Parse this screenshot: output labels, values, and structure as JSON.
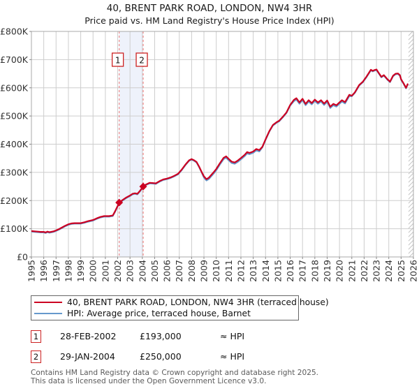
{
  "header": {
    "title": "40, BRENT PARK ROAD, LONDON, NW4 3HR",
    "subtitle": "Price paid vs. HM Land Registry's House Price Index (HPI)"
  },
  "chart_data": {
    "type": "line",
    "title": "40, BRENT PARK ROAD, LONDON, NW4 3HR",
    "subtitle": "Price paid vs. HM Land Registry's House Price Index (HPI)",
    "grid": true,
    "x_axis": {
      "range": [
        1995,
        2026
      ],
      "tick_labels": [
        "1995",
        "1996",
        "1997",
        "1998",
        "1999",
        "2000",
        "2001",
        "2002",
        "2003",
        "2004",
        "2005",
        "2006",
        "2007",
        "2008",
        "2009",
        "2010",
        "2011",
        "2012",
        "2013",
        "2014",
        "2015",
        "2016",
        "2017",
        "2018",
        "2019",
        "2020",
        "2021",
        "2022",
        "2023",
        "2024",
        "2025",
        "2026"
      ]
    },
    "y_axis": {
      "range": [
        0,
        800000
      ],
      "tick_step": 100000,
      "tick_labels": [
        "£0",
        "£100K",
        "£200K",
        "£300K",
        "£400K",
        "£500K",
        "£600K",
        "£700K",
        "£800K"
      ]
    },
    "series": [
      {
        "name": "40, BRENT PARK ROAD, LONDON, NW4 3HR (terraced house)",
        "color": "#cc0022",
        "points": [
          [
            1995.0,
            92000
          ],
          [
            1995.25,
            91000
          ],
          [
            1995.5,
            90000
          ],
          [
            1995.75,
            89000
          ],
          [
            1996.0,
            89000
          ],
          [
            1996.15,
            87000
          ],
          [
            1996.3,
            90000
          ],
          [
            1996.45,
            88000
          ],
          [
            1996.6,
            89000
          ],
          [
            1996.8,
            91000
          ],
          [
            1997.0,
            94000
          ],
          [
            1997.25,
            99000
          ],
          [
            1997.5,
            105000
          ],
          [
            1997.75,
            111000
          ],
          [
            1998.0,
            116000
          ],
          [
            1998.25,
            119000
          ],
          [
            1998.5,
            120000
          ],
          [
            1999.0,
            120000
          ],
          [
            1999.3,
            123000
          ],
          [
            1999.6,
            127000
          ],
          [
            2000.0,
            131000
          ],
          [
            2000.3,
            137000
          ],
          [
            2000.6,
            142000
          ],
          [
            2000.9,
            145000
          ],
          [
            2001.3,
            145000
          ],
          [
            2001.6,
            147000
          ],
          [
            2001.8,
            163000
          ],
          [
            2002.0,
            181000
          ],
          [
            2002.12,
            193000
          ],
          [
            2002.4,
            202000
          ],
          [
            2002.7,
            211000
          ],
          [
            2003.0,
            218000
          ],
          [
            2003.2,
            224000
          ],
          [
            2003.4,
            226000
          ],
          [
            2003.6,
            224000
          ],
          [
            2003.8,
            234000
          ],
          [
            2004.07,
            250000
          ],
          [
            2004.3,
            257000
          ],
          [
            2004.6,
            263000
          ],
          [
            2004.9,
            262000
          ],
          [
            2005.1,
            261000
          ],
          [
            2005.4,
            269000
          ],
          [
            2005.7,
            275000
          ],
          [
            2006.0,
            278000
          ],
          [
            2006.3,
            282000
          ],
          [
            2006.6,
            288000
          ],
          [
            2006.9,
            295000
          ],
          [
            2007.2,
            310000
          ],
          [
            2007.5,
            328000
          ],
          [
            2007.8,
            343000
          ],
          [
            2008.0,
            347000
          ],
          [
            2008.2,
            343000
          ],
          [
            2008.4,
            337000
          ],
          [
            2008.6,
            321000
          ],
          [
            2008.8,
            303000
          ],
          [
            2009.0,
            286000
          ],
          [
            2009.2,
            276000
          ],
          [
            2009.4,
            281000
          ],
          [
            2009.6,
            291000
          ],
          [
            2009.8,
            301000
          ],
          [
            2010.0,
            312000
          ],
          [
            2010.3,
            333000
          ],
          [
            2010.6,
            352000
          ],
          [
            2010.8,
            357000
          ],
          [
            2011.0,
            348000
          ],
          [
            2011.25,
            338000
          ],
          [
            2011.5,
            335000
          ],
          [
            2011.75,
            342000
          ],
          [
            2012.0,
            351000
          ],
          [
            2012.3,
            362000
          ],
          [
            2012.5,
            372000
          ],
          [
            2012.7,
            369000
          ],
          [
            2013.0,
            374000
          ],
          [
            2013.25,
            383000
          ],
          [
            2013.5,
            379000
          ],
          [
            2013.75,
            391000
          ],
          [
            2014.0,
            417000
          ],
          [
            2014.3,
            446000
          ],
          [
            2014.6,
            468000
          ],
          [
            2014.9,
            478000
          ],
          [
            2015.1,
            483000
          ],
          [
            2015.4,
            497000
          ],
          [
            2015.7,
            513000
          ],
          [
            2016.0,
            539000
          ],
          [
            2016.3,
            557000
          ],
          [
            2016.5,
            563000
          ],
          [
            2016.75,
            548000
          ],
          [
            2017.0,
            561000
          ],
          [
            2017.25,
            543000
          ],
          [
            2017.5,
            556000
          ],
          [
            2017.75,
            546000
          ],
          [
            2018.0,
            558000
          ],
          [
            2018.25,
            548000
          ],
          [
            2018.5,
            556000
          ],
          [
            2018.75,
            544000
          ],
          [
            2019.0,
            555000
          ],
          [
            2019.25,
            533000
          ],
          [
            2019.5,
            543000
          ],
          [
            2019.75,
            538000
          ],
          [
            2020.0,
            548000
          ],
          [
            2020.2,
            556000
          ],
          [
            2020.45,
            549000
          ],
          [
            2020.8,
            575000
          ],
          [
            2021.0,
            572000
          ],
          [
            2021.25,
            584000
          ],
          [
            2021.6,
            610000
          ],
          [
            2021.9,
            622000
          ],
          [
            2022.2,
            640000
          ],
          [
            2022.55,
            664000
          ],
          [
            2022.7,
            660000
          ],
          [
            2022.85,
            663000
          ],
          [
            2023.0,
            665000
          ],
          [
            2023.2,
            652000
          ],
          [
            2023.4,
            639000
          ],
          [
            2023.6,
            645000
          ],
          [
            2023.9,
            630000
          ],
          [
            2024.1,
            622000
          ],
          [
            2024.35,
            643000
          ],
          [
            2024.55,
            650000
          ],
          [
            2024.75,
            651000
          ],
          [
            2024.9,
            645000
          ],
          [
            2025.0,
            630000
          ],
          [
            2025.2,
            616000
          ],
          [
            2025.4,
            600000
          ],
          [
            2025.55,
            615000
          ]
        ]
      },
      {
        "name": "HPI: Average price, terraced house, Barnet",
        "color": "#6699cc",
        "note": "coincides with the property line (price paid ≈ HPI); drawn just beneath it"
      }
    ],
    "sales": [
      {
        "num": "1",
        "year": 2002.12,
        "price": 193000
      },
      {
        "num": "2",
        "year": 2004.07,
        "price": 250000
      }
    ],
    "shaded_band": {
      "from": 2002.12,
      "to": 2004.07,
      "color": "#eef2fb"
    },
    "hatch_region": {
      "from": 2025.6,
      "to": 2026
    },
    "colors": {
      "grid": "#cdcdcd",
      "plot_border": "#a8a8a8",
      "dashed_marker_line": "#f08a8a",
      "marker_box_border": "#cc2222",
      "tick_label": "#333333",
      "hatch": "#c6c6c6"
    }
  },
  "legend": {
    "items": [
      {
        "label": "40, BRENT PARK ROAD, LONDON, NW4 3HR (terraced house)",
        "color": "#cc0022"
      },
      {
        "label": "HPI: Average price, terraced house, Barnet",
        "color": "#6699cc"
      }
    ]
  },
  "transactions": [
    {
      "num": "1",
      "date": "28-FEB-2002",
      "price": "£193,000",
      "relation": "≈ HPI"
    },
    {
      "num": "2",
      "date": "29-JAN-2004",
      "price": "£250,000",
      "relation": "≈ HPI"
    }
  ],
  "footer": {
    "line1": "Contains HM Land Registry data © Crown copyright and database right 2025.",
    "line2": "This data is licensed under the Open Government Licence v3.0."
  }
}
